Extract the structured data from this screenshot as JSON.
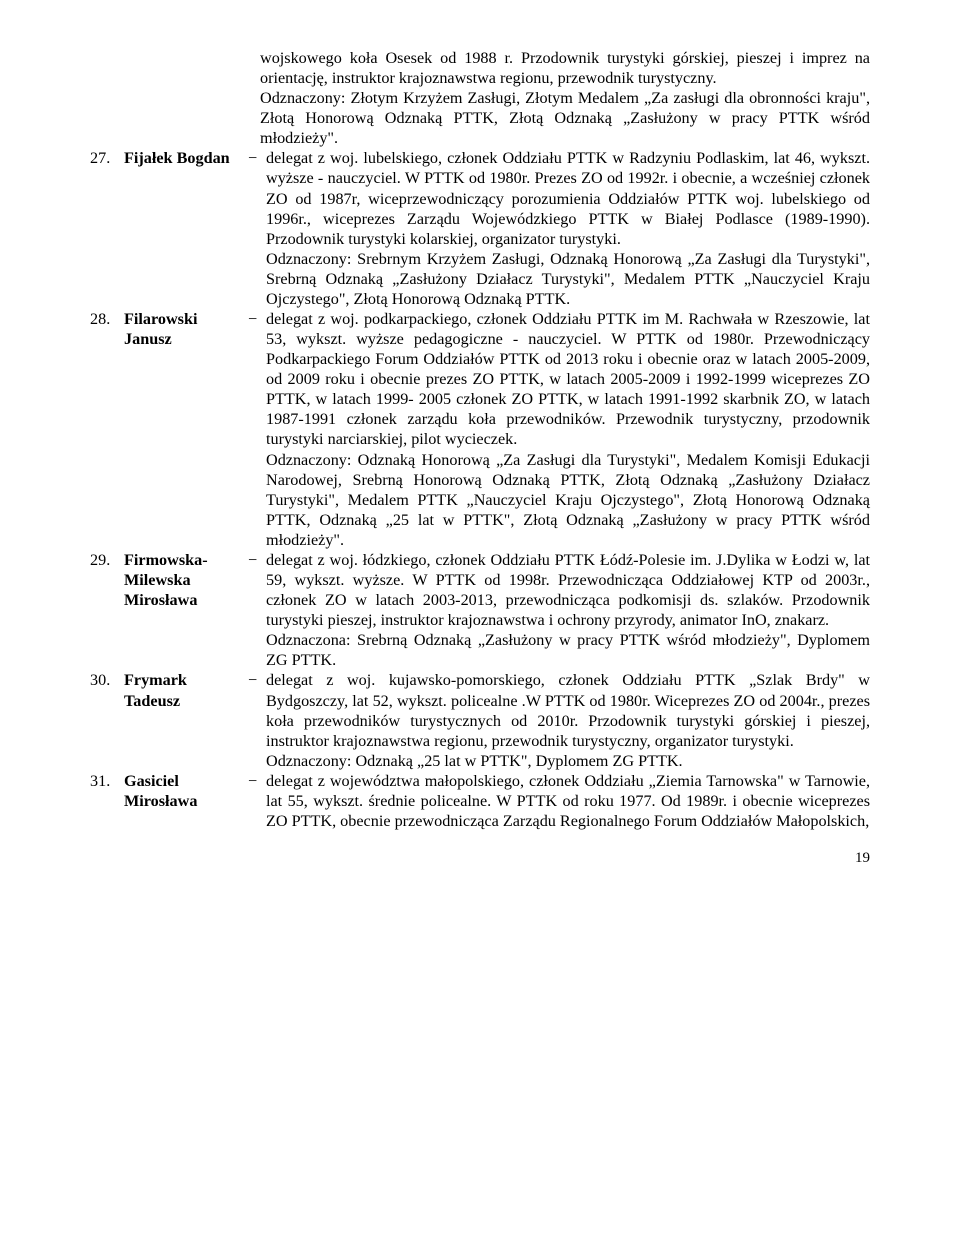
{
  "preamble": "wojskowego koła Osesek od 1988 r. Przodownik turystyki górskiej, pieszej i imprez na orientację, instruktor krajoznawstwa regionu, przewodnik turystyczny.\nOdznaczony: Złotym Krzyżem Zasługi, Złotym Medalem „Za zasługi dla obronności kraju\", Złotą Honorową Odznaką PTTK, Złotą Odznaką „Zasłużony w pracy PTTK wśród młodzieży\".",
  "entries": [
    {
      "num": "27.",
      "name": "Fijałek Bogdan",
      "dash": "−",
      "body": "delegat z woj. lubelskiego, członek Oddziału PTTK w Radzyniu Podlaskim, lat 46, wykszt. wyższe - nauczyciel. W PTTK od 1980r. Prezes ZO od 1992r. i obecnie, a wcześniej członek ZO od 1987r, wiceprzewodniczący porozumienia Oddziałów PTTK woj. lubelskiego od 1996r., wiceprezes Zarządu Wojewódzkiego PTTK w Białej Podlasce (1989-1990). Przodownik turystyki kolarskiej, organizator turystyki.\nOdznaczony: Srebrnym Krzyżem Zasługi, Odznaką Honorową „Za Zasługi dla Turystyki\", Srebrną Odznaką „Zasłużony Działacz Turystyki\", Medalem PTTK „Nauczyciel Kraju Ojczystego\", Złotą Honorową Odznaką PTTK."
    },
    {
      "num": "28.",
      "name": "Filarowski Janusz",
      "dash": "−",
      "body": "delegat z woj. podkarpackiego, członek Oddziału PTTK im M. Rachwała w Rzeszowie, lat 53, wykszt. wyższe pedagogiczne - nauczyciel. W PTTK od 1980r. Przewodniczący Podkarpackiego Forum Oddziałów PTTK od 2013 roku i obecnie oraz w latach 2005-2009, od 2009 roku i obecnie prezes ZO PTTK, w latach 2005-2009 i 1992-1999 wiceprezes ZO PTTK, w latach 1999- 2005 członek ZO PTTK, w latach 1991-1992 skarbnik ZO, w latach 1987-1991 członek zarządu koła przewodników. Przewodnik turystyczny, przodownik turystyki narciarskiej, pilot wycieczek.\nOdznaczony: Odznaką Honorową „Za Zasługi dla Turystyki\", Medalem Komisji Edukacji Narodowej, Srebrną Honorową Odznaką PTTK, Złotą Odznaką „Zasłużony Działacz Turystyki\", Medalem PTTK „Nauczyciel Kraju Ojczystego\", Złotą Honorową Odznaką PTTK, Odznaką „25 lat w PTTK\", Złotą Odznaką „Zasłużony w pracy PTTK wśród młodzieży\"."
    },
    {
      "num": "29.",
      "name": "Firmowska-Milewska Mirosława",
      "dash": "−",
      "body": "delegat z woj. łódzkiego, członek Oddziału PTTK Łódź-Polesie im. J.Dylika w Łodzi w, lat 59, wykszt. wyższe. W PTTK od 1998r. Przewodnicząca Oddziałowej KTP od 2003r., członek ZO w latach 2003-2013, przewodnicząca podkomisji ds. szlaków. Przodownik turystyki pieszej, instruktor krajoznawstwa i ochrony przyrody, animator InO, znakarz.\nOdznaczona: Srebrną Odznaką „Zasłużony w pracy PTTK wśród młodzieży\", Dyplomem ZG PTTK."
    },
    {
      "num": "30.",
      "name": "Frymark Tadeusz",
      "dash": "−",
      "body": "delegat z woj. kujawsko-pomorskiego, członek Oddziału PTTK „Szlak Brdy\" w Bydgoszczy, lat 52, wykszt. policealne .W PTTK od 1980r. Wiceprezes ZO od 2004r., prezes koła przewodników turystycznych od 2010r. Przodownik turystyki górskiej i pieszej, instruktor krajoznawstwa regionu, przewodnik turystyczny, organizator turystyki.\nOdznaczony: Odznaką „25 lat w PTTK\", Dyplomem ZG PTTK."
    },
    {
      "num": "31.",
      "name": "Gasiciel Mirosława",
      "dash": "−",
      "body": "delegat z województwa małopolskiego, członek Oddziału „Ziemia Tarnowska\" w Tarnowie, lat 55, wykszt. średnie policealne. W PTTK od roku 1977. Od 1989r. i obecnie wiceprezes ZO PTTK, obecnie przewodnicząca Zarządu Regionalnego Forum Oddziałów Małopolskich,"
    }
  ],
  "page_number": "19"
}
